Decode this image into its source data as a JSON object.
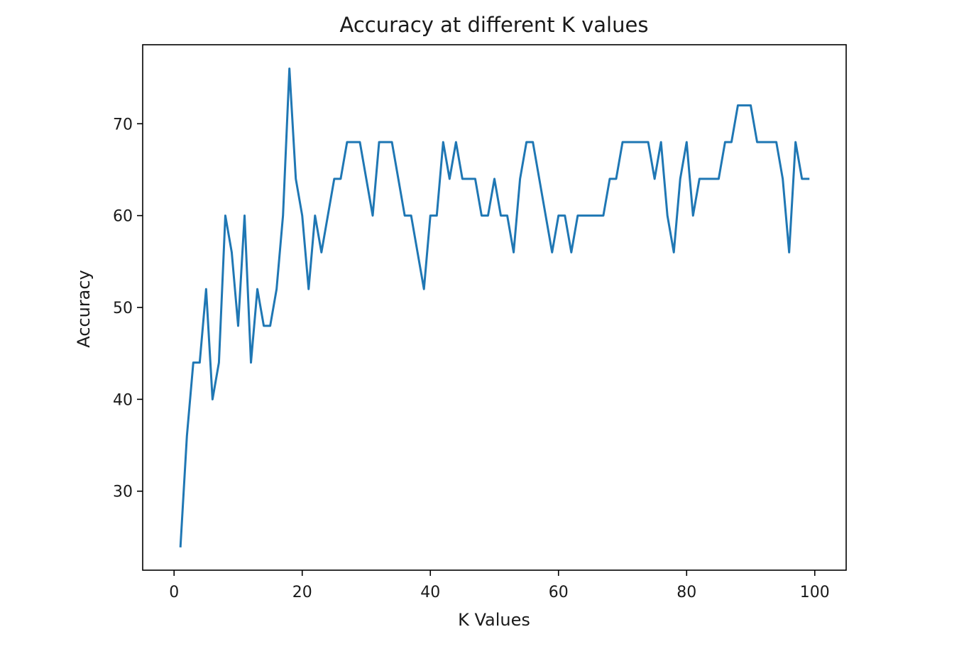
{
  "chart_data": {
    "type": "line",
    "title": "Accuracy at different K values",
    "xlabel": "K Values",
    "ylabel": "Accuracy",
    "xlim": [
      -4.9,
      104.9
    ],
    "ylim": [
      21.4,
      78.6
    ],
    "xticks": [
      0,
      20,
      40,
      60,
      80,
      100
    ],
    "yticks": [
      30,
      40,
      50,
      60,
      70
    ],
    "grid": false,
    "color": "#1f77b4",
    "series": [
      {
        "x": [
          1,
          2,
          3,
          4,
          5,
          6,
          7,
          8,
          9,
          10,
          11,
          12,
          13,
          14,
          15,
          16,
          17,
          18,
          19,
          20,
          21,
          22,
          23,
          24,
          25,
          26,
          27,
          28,
          29,
          30,
          31,
          32,
          33,
          34,
          35,
          36,
          37,
          38,
          39,
          40,
          41,
          42,
          43,
          44,
          45,
          46,
          47,
          48,
          49,
          50,
          51,
          52,
          53,
          54,
          55,
          56,
          57,
          58,
          59,
          60,
          61,
          62,
          63,
          64,
          65,
          66,
          67,
          68,
          69,
          70,
          71,
          72,
          73,
          74,
          75,
          76,
          77,
          78,
          79,
          80,
          81,
          82,
          83,
          84,
          85,
          86,
          87,
          88,
          89,
          90,
          91,
          92,
          93,
          94,
          95,
          96,
          97,
          98,
          99
        ],
        "values": [
          24,
          36,
          44,
          44,
          52,
          40,
          44,
          60,
          56,
          48,
          60,
          44,
          52,
          48,
          48,
          52,
          60,
          76,
          64,
          60,
          52,
          60,
          56,
          60,
          64,
          64,
          68,
          68,
          68,
          64,
          60,
          68,
          68,
          68,
          64,
          60,
          60,
          56,
          52,
          60,
          60,
          68,
          64,
          68,
          64,
          64,
          64,
          60,
          60,
          64,
          60,
          60,
          56,
          64,
          68,
          68,
          64,
          60,
          56,
          60,
          60,
          56,
          60,
          60,
          60,
          60,
          60,
          64,
          64,
          68,
          68,
          68,
          68,
          68,
          64,
          68,
          60,
          56,
          64,
          68,
          60,
          64,
          64,
          64,
          64,
          68,
          68,
          72,
          72,
          72,
          68,
          68,
          68,
          68,
          64,
          56,
          68,
          64,
          64
        ]
      }
    ]
  }
}
